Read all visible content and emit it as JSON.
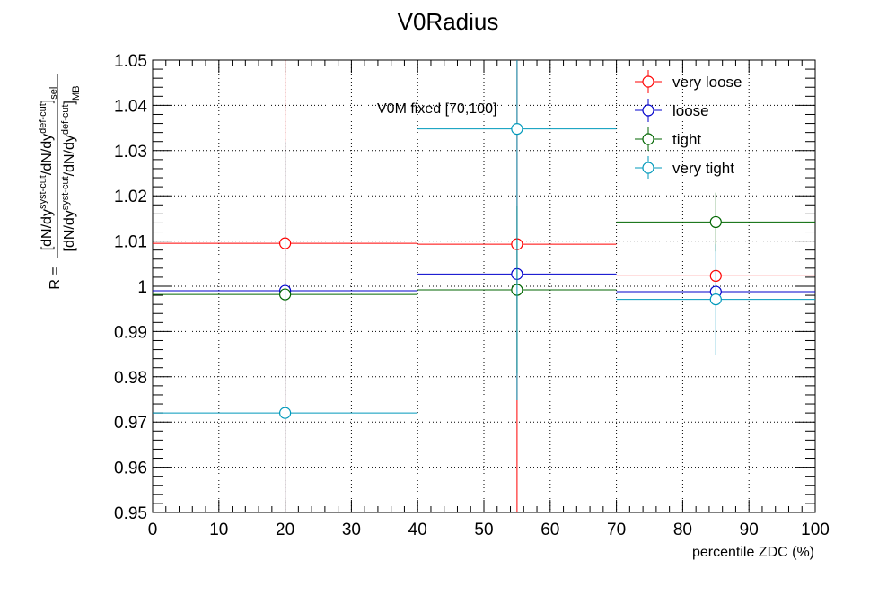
{
  "chart_data": {
    "type": "scatter",
    "title": "V0Radius",
    "xlabel": "percentile ZDC (%)",
    "ylabel_main": "R = ",
    "ylabel_num": "[dN/dy^syst-cut/dN/dy^def-cut]_sel",
    "ylabel_den": "[dN/dy^syst-cut/dN/dy^def-cut]_MB",
    "annotation": "V0M fixed [70,100]",
    "xlim": [
      0,
      100
    ],
    "ylim": [
      0.95,
      1.05
    ],
    "x_ticks": [
      0,
      10,
      20,
      30,
      40,
      50,
      60,
      70,
      80,
      90,
      100
    ],
    "y_ticks": [
      0.95,
      0.96,
      0.97,
      0.98,
      0.99,
      1.0,
      1.01,
      1.02,
      1.03,
      1.04,
      1.05
    ],
    "x_tick_labels": [
      "0",
      "10",
      "20",
      "30",
      "40",
      "50",
      "60",
      "70",
      "80",
      "90",
      "100"
    ],
    "y_tick_labels": [
      "0.95",
      "0.96",
      "0.97",
      "0.98",
      "0.99",
      "1",
      "1.01",
      "1.02",
      "1.03",
      "1.04",
      "1.05"
    ],
    "grid": true,
    "legend_position": "top-right",
    "bins": [
      {
        "x": 20,
        "low": 0,
        "high": 40
      },
      {
        "x": 55,
        "low": 40,
        "high": 70
      },
      {
        "x": 85,
        "low": 70,
        "high": 100
      }
    ],
    "series": [
      {
        "name": "very loose",
        "color": "#ff0000",
        "values": [
          1.0095,
          1.0093,
          1.0023
        ],
        "errors": [
          0.06,
          0.06,
          0.0
        ]
      },
      {
        "name": "loose",
        "color": "#0000cc",
        "values": [
          0.999,
          1.0027,
          0.9988
        ],
        "errors": [
          0.0,
          0.0,
          0.0
        ]
      },
      {
        "name": "tight",
        "color": "#006600",
        "values": [
          0.9982,
          0.9992,
          1.0142
        ],
        "errors": [
          0.0,
          0.0185,
          0.0065
        ]
      },
      {
        "name": "very tight",
        "color": "#0099bb",
        "values": [
          0.972,
          1.0348,
          0.9971
        ],
        "errors": [
          0.06,
          0.06,
          0.0122
        ]
      }
    ]
  }
}
